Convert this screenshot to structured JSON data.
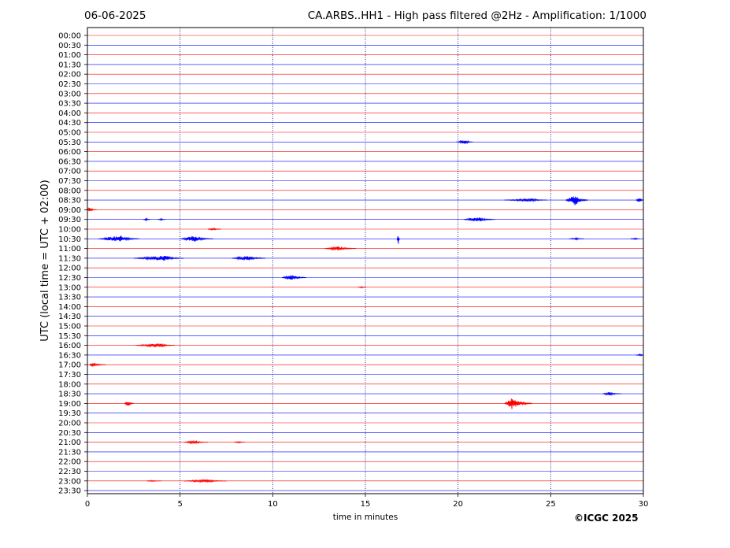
{
  "header": {
    "date": "06-06-2025",
    "title": "CA.ARBS..HH1 - High pass filtered @2Hz - Amplification: 1/1000"
  },
  "footer": {
    "copyright": "©ICGC 2025"
  },
  "chart_data": {
    "type": "line",
    "title": "CA.ARBS..HH1 - High pass filtered @2Hz - Amplification: 1/1000",
    "xlabel": "time in minutes",
    "ylabel": "UTC (local time = UTC + 02:00)",
    "xlim": [
      0,
      30
    ],
    "x_ticks": [
      0,
      5,
      10,
      15,
      20,
      25,
      30
    ],
    "x_tick_labels": [
      "0",
      "5",
      "10",
      "15",
      "20",
      "25",
      "30"
    ],
    "vertical_grid_minutes": [
      5,
      10,
      15,
      20,
      25
    ],
    "row_labels": [
      "00:00",
      "00:30",
      "01:00",
      "01:30",
      "02:00",
      "02:30",
      "03:00",
      "03:30",
      "04:00",
      "04:30",
      "05:00",
      "05:30",
      "06:00",
      "06:30",
      "07:00",
      "07:30",
      "08:00",
      "08:30",
      "09:00",
      "09:30",
      "10:00",
      "10:30",
      "11:00",
      "11:30",
      "12:00",
      "12:30",
      "13:00",
      "13:30",
      "14:00",
      "14:30",
      "15:00",
      "15:30",
      "16:00",
      "16:30",
      "17:00",
      "17:30",
      "18:00",
      "18:30",
      "19:00",
      "19:30",
      "20:00",
      "20:30",
      "21:00",
      "21:30",
      "22:00",
      "22:30",
      "23:00",
      "23:30"
    ],
    "trace_colors": [
      "#ff0000",
      "#0000ff"
    ],
    "events": [
      {
        "row": "05:30",
        "minute_start": 19.9,
        "minute_end": 20.8,
        "peak_minute": 20.4,
        "amplitude": 0.3
      },
      {
        "row": "08:30",
        "minute_start": 22.5,
        "minute_end": 24.8,
        "peak_minute": 24.0,
        "amplitude": 0.2
      },
      {
        "row": "08:30",
        "minute_start": 25.8,
        "minute_end": 27.0,
        "peak_minute": 26.3,
        "amplitude": 0.8
      },
      {
        "row": "08:30",
        "minute_start": 29.6,
        "minute_end": 30.0,
        "peak_minute": 29.8,
        "amplitude": 0.3
      },
      {
        "row": "09:00",
        "minute_start": 0.0,
        "minute_end": 0.5,
        "peak_minute": 0.1,
        "amplitude": 0.3
      },
      {
        "row": "09:30",
        "minute_start": 20.3,
        "minute_end": 22.0,
        "peak_minute": 21.1,
        "amplitude": 0.35
      },
      {
        "row": "09:30",
        "minute_start": 3.0,
        "minute_end": 3.4,
        "peak_minute": 3.2,
        "amplitude": 0.15
      },
      {
        "row": "09:30",
        "minute_start": 3.8,
        "minute_end": 4.2,
        "peak_minute": 4.0,
        "amplitude": 0.12
      },
      {
        "row": "10:00",
        "minute_start": 6.5,
        "minute_end": 7.2,
        "peak_minute": 6.8,
        "amplitude": 0.15
      },
      {
        "row": "10:30",
        "minute_start": 0.6,
        "minute_end": 2.8,
        "peak_minute": 1.8,
        "amplitude": 0.45
      },
      {
        "row": "10:30",
        "minute_start": 5.0,
        "minute_end": 6.8,
        "peak_minute": 5.8,
        "amplitude": 0.4
      },
      {
        "row": "10:30",
        "minute_start": 16.7,
        "minute_end": 16.85,
        "peak_minute": 16.78,
        "amplitude": 1.0
      },
      {
        "row": "10:30",
        "minute_start": 26.0,
        "minute_end": 26.8,
        "peak_minute": 26.4,
        "amplitude": 0.12
      },
      {
        "row": "10:30",
        "minute_start": 29.3,
        "minute_end": 29.8,
        "peak_minute": 29.6,
        "amplitude": 0.1
      },
      {
        "row": "11:00",
        "minute_start": 12.8,
        "minute_end": 14.5,
        "peak_minute": 13.5,
        "amplitude": 0.3
      },
      {
        "row": "11:30",
        "minute_start": 2.5,
        "minute_end": 5.2,
        "peak_minute": 4.2,
        "amplitude": 0.35
      },
      {
        "row": "11:30",
        "minute_start": 7.8,
        "minute_end": 9.6,
        "peak_minute": 8.7,
        "amplitude": 0.35
      },
      {
        "row": "12:30",
        "minute_start": 10.5,
        "minute_end": 11.8,
        "peak_minute": 11.0,
        "amplitude": 0.4
      },
      {
        "row": "13:00",
        "minute_start": 14.6,
        "minute_end": 15.0,
        "peak_minute": 14.8,
        "amplitude": 0.1
      },
      {
        "row": "16:00",
        "minute_start": 2.6,
        "minute_end": 4.7,
        "peak_minute": 3.9,
        "amplitude": 0.25
      },
      {
        "row": "16:30",
        "minute_start": 29.6,
        "minute_end": 30.0,
        "peak_minute": 29.9,
        "amplitude": 0.15
      },
      {
        "row": "17:00",
        "minute_start": 0.1,
        "minute_end": 1.0,
        "peak_minute": 0.3,
        "amplitude": 0.25
      },
      {
        "row": "18:30",
        "minute_start": 27.8,
        "minute_end": 28.8,
        "peak_minute": 28.2,
        "amplitude": 0.25
      },
      {
        "row": "19:00",
        "minute_start": 2.0,
        "minute_end": 2.5,
        "peak_minute": 2.2,
        "amplitude": 0.35
      },
      {
        "row": "19:00",
        "minute_start": 22.5,
        "minute_end": 24.0,
        "peak_minute": 22.9,
        "amplitude": 0.75
      },
      {
        "row": "21:00",
        "minute_start": 5.2,
        "minute_end": 6.5,
        "peak_minute": 5.8,
        "amplitude": 0.2
      },
      {
        "row": "21:00",
        "minute_start": 7.9,
        "minute_end": 8.5,
        "peak_minute": 8.2,
        "amplitude": 0.1
      },
      {
        "row": "23:00",
        "minute_start": 3.2,
        "minute_end": 4.0,
        "peak_minute": 3.5,
        "amplitude": 0.08
      },
      {
        "row": "23:00",
        "minute_start": 5.2,
        "minute_end": 7.5,
        "peak_minute": 6.5,
        "amplitude": 0.2
      }
    ]
  }
}
